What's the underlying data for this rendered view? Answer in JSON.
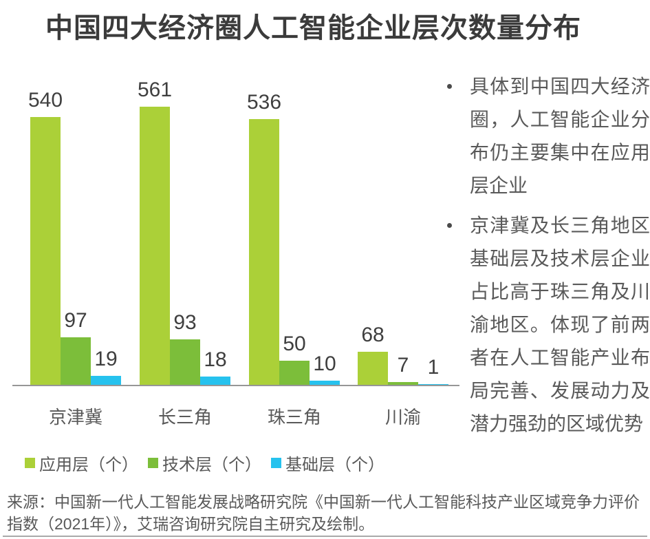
{
  "title": "中国四大经济圈人工智能企业层次数量分布",
  "chart_data": {
    "type": "bar",
    "title": "中国四大经济圈人工智能企业层次数量分布",
    "categories": [
      "京津冀",
      "长三角",
      "珠三角",
      "川渝"
    ],
    "series": [
      {
        "name": "应用层（个）",
        "color": "#abd038",
        "values": [
          540,
          561,
          536,
          68
        ]
      },
      {
        "name": "技术层（个）",
        "color": "#7cbe3a",
        "values": [
          97,
          93,
          50,
          7
        ]
      },
      {
        "name": "基础层（个）",
        "color": "#26c2ee",
        "values": [
          19,
          18,
          10,
          1
        ]
      }
    ],
    "ylim": [
      0,
      561
    ],
    "xlabel": "",
    "ylabel": "",
    "grid": false,
    "legend_position": "bottom",
    "value_labels": true
  },
  "notes": {
    "bullets": [
      "具体到中国四大经济圈，人工智能企业分布仍主要集中在应用层企业",
      "京津冀及长三角地区基础层及技术层企业占比高于珠三角及川渝地区。体现了前两者在人工智能产业布局完善、发展动力及潜力强劲的区域优势"
    ]
  },
  "source_label": "来源：中国新一代人工智能发展战略研究院《中国新一代人工智能科技产业区域竞争力评价指数（2021年）》，艾瑞咨询研究院自主研究及绘制。",
  "colors": {
    "bar_applied": "#abd038",
    "bar_tech": "#7cbe3a",
    "bar_base": "#26c2ee",
    "axis": "#969696",
    "title_text": "#3b3b3b",
    "value_text": "#3f3f3f",
    "gray_text": "#595959"
  }
}
